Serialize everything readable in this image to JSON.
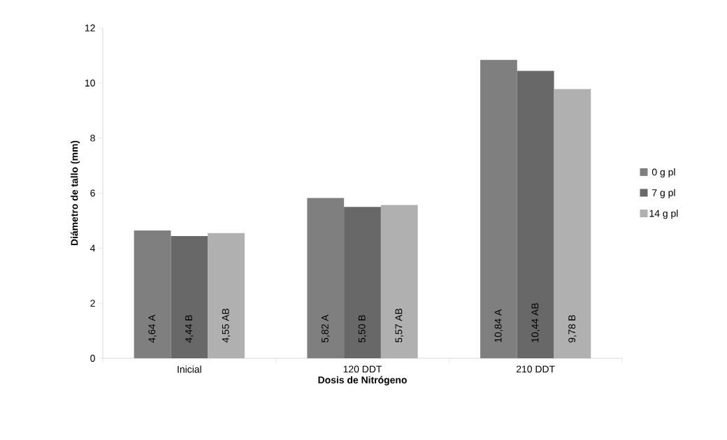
{
  "chart_data": {
    "type": "bar",
    "xlabel": "Dosis de Nitrógeno",
    "ylabel": "Diámetro de tallo (mm)",
    "categories": [
      "Inicial",
      "120 DDT",
      "210 DDT"
    ],
    "series": [
      {
        "name": "0 g pl",
        "color": "#7f7f7f",
        "values": [
          4.64,
          5.82,
          10.84
        ],
        "value_labels": [
          "4,64 A",
          "5,82 A",
          "10,84 A"
        ]
      },
      {
        "name": "7 g pl",
        "color": "#686868",
        "values": [
          4.44,
          5.5,
          10.44
        ],
        "value_labels": [
          "4,44 B",
          "5,50 B",
          "10,44 AB"
        ]
      },
      {
        "name": "14 g pl",
        "color": "#b0b0b0",
        "values": [
          4.55,
          5.57,
          9.78
        ],
        "value_labels": [
          "4,55 AB",
          "5,57 AB",
          "9,78 B"
        ]
      }
    ],
    "ylim": [
      0,
      12
    ],
    "yticks": [
      0,
      2,
      4,
      6,
      8,
      10,
      12
    ],
    "grid": false,
    "legend": "right"
  }
}
